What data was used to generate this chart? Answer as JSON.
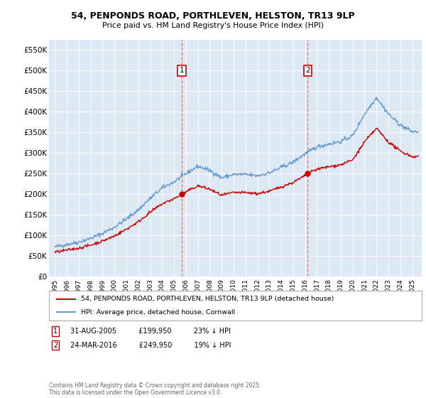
{
  "title": "54, PENPONDS ROAD, PORTHLEVEN, HELSTON, TR13 9LP",
  "subtitle": "Price paid vs. HM Land Registry's House Price Index (HPI)",
  "background_color": "#ffffff",
  "plot_bg_color": "#dce9f5",
  "grid_color": "#ffffff",
  "ylim": [
    0,
    575000
  ],
  "yticks": [
    0,
    50000,
    100000,
    150000,
    200000,
    250000,
    300000,
    350000,
    400000,
    450000,
    500000,
    550000
  ],
  "ytick_labels": [
    "£0",
    "£50K",
    "£100K",
    "£150K",
    "£200K",
    "£250K",
    "£300K",
    "£350K",
    "£400K",
    "£450K",
    "£500K",
    "£550K"
  ],
  "sale1_x": 2005.66,
  "sale1_y": 199950,
  "sale2_x": 2016.23,
  "sale2_y": 249950,
  "sale1_label": "1",
  "sale2_label": "2",
  "vline_color": "#ff6666",
  "vline_style": "--",
  "marker_color": "#cc0000",
  "hpi_color": "#6699cc",
  "price_color": "#cc0000",
  "legend_label_price": "54, PENPONDS ROAD, PORTHLEVEN, HELSTON, TR13 9LP (detached house)",
  "legend_label_hpi": "HPI: Average price, detached house, Cornwall",
  "annotation1_date": "31-AUG-2005",
  "annotation1_price": "£199,950",
  "annotation1_hpi": "23% ↓ HPI",
  "annotation2_date": "24-MAR-2016",
  "annotation2_price": "£249,950",
  "annotation2_hpi": "19% ↓ HPI",
  "footer": "Contains HM Land Registry data © Crown copyright and database right 2025.\nThis data is licensed under the Open Government Licence v3.0.",
  "xlim_start": 1994.5,
  "xlim_end": 2025.8,
  "xtick_years": [
    1995,
    1996,
    1997,
    1998,
    1999,
    2000,
    2001,
    2002,
    2003,
    2004,
    2005,
    2006,
    2007,
    2008,
    2009,
    2010,
    2011,
    2012,
    2013,
    2014,
    2015,
    2016,
    2017,
    2018,
    2019,
    2020,
    2021,
    2022,
    2023,
    2024,
    2025
  ],
  "hpi_years": [
    1995,
    1996,
    1997,
    1998,
    1999,
    2000,
    2001,
    2002,
    2003,
    2004,
    2005,
    2006,
    2007,
    2008,
    2009,
    2010,
    2011,
    2012,
    2013,
    2014,
    2015,
    2016,
    2017,
    2018,
    2019,
    2020,
    2021,
    2022,
    2023,
    2024,
    2025
  ],
  "hpi_values": [
    72000,
    78000,
    84000,
    93000,
    105000,
    120000,
    140000,
    162000,
    190000,
    215000,
    230000,
    250000,
    268000,
    258000,
    240000,
    248000,
    248000,
    245000,
    252000,
    265000,
    278000,
    298000,
    315000,
    322000,
    328000,
    342000,
    395000,
    435000,
    395000,
    368000,
    352000
  ]
}
